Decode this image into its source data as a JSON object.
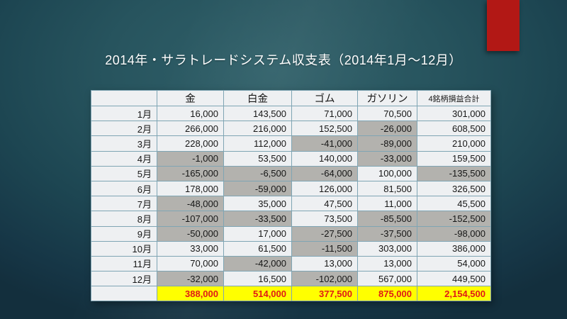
{
  "slide": {
    "title": "2014年・サラトレードシステム収支表（2014年1月～12月）",
    "accent_color": "#b21815",
    "background_center_color": "#2d5a5e",
    "background_edge_color": "#173a4a"
  },
  "table": {
    "columns": [
      "",
      "金",
      "白金",
      "ゴム",
      "ガソリン",
      "4銘柄損益合計"
    ],
    "rows": [
      {
        "label": "1月",
        "values": [
          "16,000",
          "143,500",
          "71,000",
          "70,500",
          "301,000"
        ]
      },
      {
        "label": "2月",
        "values": [
          "266,000",
          "216,000",
          "152,500",
          "-26,000",
          "608,500"
        ]
      },
      {
        "label": "3月",
        "values": [
          "228,000",
          "112,000",
          "-41,000",
          "-89,000",
          "210,000"
        ]
      },
      {
        "label": "4月",
        "values": [
          "-1,000",
          "53,500",
          "140,000",
          "-33,000",
          "159,500"
        ]
      },
      {
        "label": "5月",
        "values": [
          "-165,000",
          "-6,500",
          "-64,000",
          "100,000",
          "-135,500"
        ]
      },
      {
        "label": "6月",
        "values": [
          "178,000",
          "-59,000",
          "126,000",
          "81,500",
          "326,500"
        ]
      },
      {
        "label": "7月",
        "values": [
          "-48,000",
          "35,000",
          "47,500",
          "11,000",
          "45,500"
        ]
      },
      {
        "label": "8月",
        "values": [
          "-107,000",
          "-33,500",
          "73,500",
          "-85,500",
          "-152,500"
        ]
      },
      {
        "label": "9月",
        "values": [
          "-50,000",
          "17,000",
          "-27,500",
          "-37,500",
          "-98,000"
        ]
      },
      {
        "label": "10月",
        "values": [
          "33,000",
          "61,500",
          "-11,500",
          "303,000",
          "386,000"
        ]
      },
      {
        "label": "11月",
        "values": [
          "70,000",
          "-42,000",
          "13,000",
          "13,000",
          "54,000"
        ]
      },
      {
        "label": "12月",
        "values": [
          "-32,000",
          "16,500",
          "-102,000",
          "567,000",
          "449,500"
        ]
      }
    ],
    "total_row": {
      "label": "",
      "values": [
        "388,000",
        "514,000",
        "377,500",
        "875,000",
        "2,154,500"
      ]
    },
    "colors": {
      "cell_bg": "#eef0f2",
      "negative_bg": "#b3b2ae",
      "total_bg": "#ffff00",
      "total_text": "#e01a16",
      "border": "#7fa5b4"
    }
  }
}
